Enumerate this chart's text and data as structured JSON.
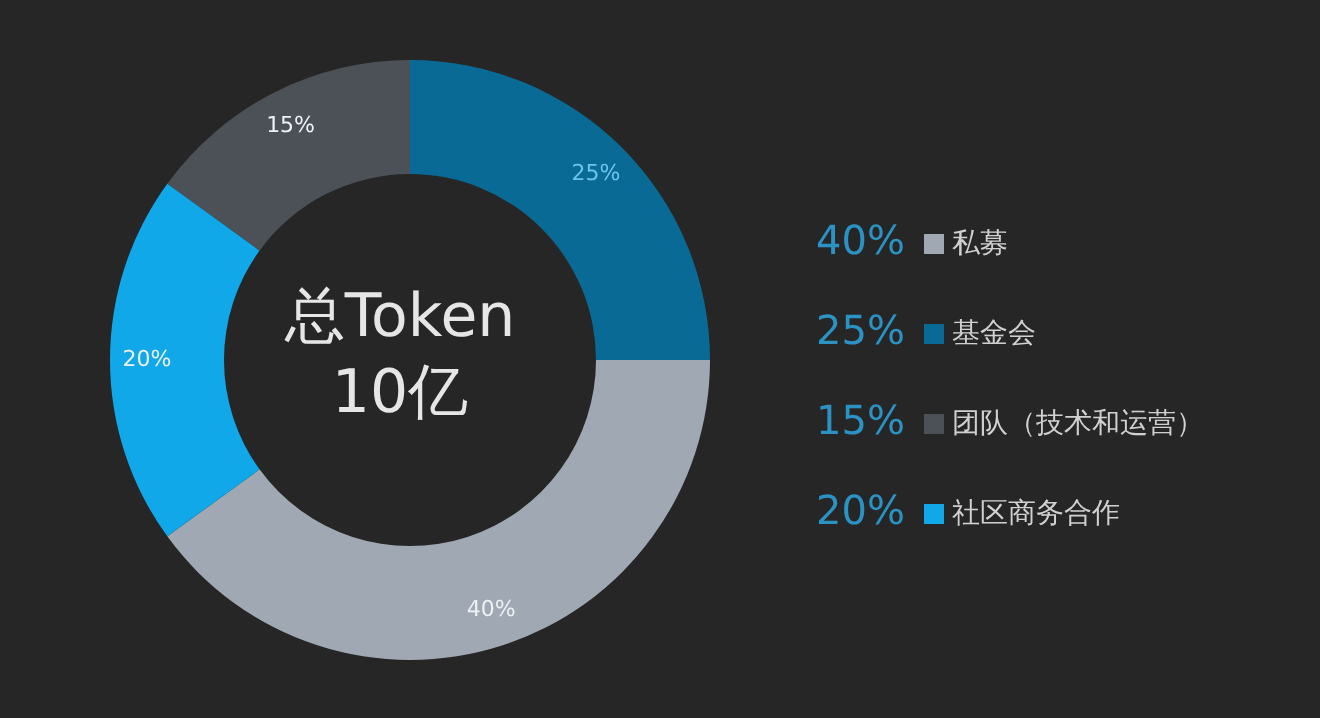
{
  "chart_data": {
    "type": "donut",
    "categories": [
      "私募",
      "基金会",
      "团队（技术和运营）",
      "社区商务合作"
    ],
    "values": [
      40,
      25,
      15,
      20
    ],
    "value_labels": [
      "40%",
      "25%",
      "15%",
      "20%"
    ],
    "colors": [
      "#a0a8b3",
      "#0a6a96",
      "#4c5158",
      "#10a8e8"
    ],
    "data_labels": true,
    "legend": "right",
    "annotations": [
      "总Token",
      "10亿"
    ]
  }
}
